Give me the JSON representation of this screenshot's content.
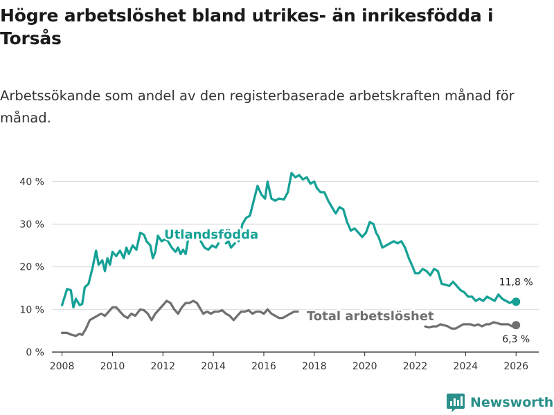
{
  "page": {
    "title": "Högre arbetslöshet bland utrikes- än inrikesfödda i Torsås",
    "subtitle": "Arbetssökande som andel av den registerbaserade arbetskraften månad för månad."
  },
  "brand": {
    "name": "Newsworthy",
    "icon": "newsworthy-logo-icon",
    "color": "#2a8f8a"
  },
  "chart_data": {
    "type": "line",
    "title": "Högre arbetslöshet bland utrikes- än inrikesfödda i Torsås",
    "subtitle": "Arbetssökande som andel av den registerbaserade arbetskraften månad för månad.",
    "xlabel": "",
    "ylabel": "",
    "xlim": [
      2007.6,
      2026.9
    ],
    "ylim": [
      0,
      43
    ],
    "x_ticks": [
      2008,
      2010,
      2012,
      2014,
      2016,
      2018,
      2020,
      2022,
      2024,
      2026
    ],
    "x_tick_labels": [
      "2008",
      "2010",
      "2012",
      "2014",
      "2016",
      "2018",
      "2020",
      "2022",
      "2024",
      "2026"
    ],
    "y_ticks": [
      0,
      10,
      20,
      30,
      40
    ],
    "y_tick_labels": [
      "0 %",
      "10 %",
      "20 %",
      "30 %",
      "40 %"
    ],
    "grid": true,
    "series": [
      {
        "name": "Utlandsfödda",
        "color": "#15a196",
        "end_label": "11,8 %",
        "points": [
          [
            2008.0,
            11.0
          ],
          [
            2008.2,
            14.8
          ],
          [
            2008.35,
            14.5
          ],
          [
            2008.45,
            10.5
          ],
          [
            2008.55,
            12.5
          ],
          [
            2008.7,
            11.0
          ],
          [
            2008.8,
            11.3
          ],
          [
            2008.9,
            15.2
          ],
          [
            2009.05,
            16.0
          ],
          [
            2009.2,
            19.5
          ],
          [
            2009.35,
            23.8
          ],
          [
            2009.45,
            20.5
          ],
          [
            2009.6,
            21.5
          ],
          [
            2009.7,
            19.0
          ],
          [
            2009.8,
            22.0
          ],
          [
            2009.9,
            20.5
          ],
          [
            2010.0,
            23.5
          ],
          [
            2010.15,
            22.5
          ],
          [
            2010.3,
            23.8
          ],
          [
            2010.45,
            22.0
          ],
          [
            2010.55,
            24.5
          ],
          [
            2010.65,
            23.0
          ],
          [
            2010.8,
            25.0
          ],
          [
            2010.95,
            24.0
          ],
          [
            2011.1,
            28.0
          ],
          [
            2011.25,
            27.5
          ],
          [
            2011.35,
            26.0
          ],
          [
            2011.5,
            25.0
          ],
          [
            2011.6,
            22.0
          ],
          [
            2011.7,
            23.5
          ],
          [
            2011.8,
            27.3
          ],
          [
            2011.95,
            26.0
          ],
          [
            2012.1,
            26.5
          ],
          [
            2012.2,
            26.0
          ],
          [
            2012.35,
            24.5
          ],
          [
            2012.5,
            23.5
          ],
          [
            2012.6,
            24.5
          ],
          [
            2012.7,
            23.0
          ],
          [
            2012.8,
            24.0
          ],
          [
            2012.9,
            23.0
          ],
          [
            2013.0,
            26.5
          ]
        ],
        "segments": [
          [
            [
              2013.5,
              26.0
            ],
            [
              2013.65,
              24.5
            ],
            [
              2013.8,
              24.0
            ],
            [
              2013.95,
              25.0
            ],
            [
              2014.1,
              24.5
            ],
            [
              2014.2,
              25.5
            ]
          ],
          [
            [
              2014.5,
              25.5
            ],
            [
              2014.6,
              26.0
            ],
            [
              2014.7,
              24.5
            ],
            [
              2014.85,
              25.5
            ]
          ],
          [
            [
              2015.0,
              26.0
            ],
            [
              2015.15,
              30.0
            ],
            [
              2015.3,
              31.5
            ],
            [
              2015.45,
              32.0
            ],
            [
              2015.6,
              35.5
            ],
            [
              2015.75,
              39.0
            ],
            [
              2015.9,
              37.0
            ],
            [
              2016.05,
              36.0
            ],
            [
              2016.15,
              40.0
            ],
            [
              2016.3,
              36.0
            ],
            [
              2016.45,
              35.5
            ],
            [
              2016.6,
              36.0
            ],
            [
              2016.8,
              35.8
            ],
            [
              2016.95,
              37.5
            ],
            [
              2017.1,
              42.0
            ],
            [
              2017.25,
              41.0
            ],
            [
              2017.4,
              41.5
            ],
            [
              2017.55,
              40.5
            ],
            [
              2017.7,
              41.0
            ],
            [
              2017.85,
              39.5
            ],
            [
              2018.0,
              40.0
            ],
            [
              2018.1,
              38.5
            ],
            [
              2018.25,
              37.5
            ],
            [
              2018.4,
              37.5
            ],
            [
              2018.55,
              35.5
            ],
            [
              2018.7,
              34.0
            ],
            [
              2018.85,
              32.5
            ],
            [
              2019.0,
              34.0
            ],
            [
              2019.15,
              33.5
            ],
            [
              2019.3,
              30.5
            ],
            [
              2019.45,
              28.5
            ],
            [
              2019.6,
              29.0
            ],
            [
              2019.75,
              28.0
            ],
            [
              2019.9,
              27.0
            ],
            [
              2020.05,
              28.0
            ],
            [
              2020.2,
              30.5
            ],
            [
              2020.35,
              30.0
            ],
            [
              2020.45,
              28.0
            ],
            [
              2020.55,
              27.0
            ],
            [
              2020.7,
              24.5
            ],
            [
              2020.85,
              25.0
            ],
            [
              2021.0,
              25.5
            ],
            [
              2021.15,
              26.0
            ],
            [
              2021.3,
              25.5
            ],
            [
              2021.45,
              26.0
            ],
            [
              2021.6,
              24.5
            ],
            [
              2021.75,
              22.0
            ],
            [
              2021.9,
              20.0
            ],
            [
              2022.0,
              18.5
            ],
            [
              2022.15,
              18.5
            ],
            [
              2022.3,
              19.5
            ],
            [
              2022.45,
              19.0
            ],
            [
              2022.6,
              18.0
            ],
            [
              2022.75,
              19.5
            ],
            [
              2022.9,
              19.0
            ],
            [
              2023.05,
              16.0
            ],
            [
              2023.2,
              15.8
            ],
            [
              2023.35,
              15.5
            ],
            [
              2023.5,
              16.5
            ],
            [
              2023.65,
              15.5
            ],
            [
              2023.8,
              14.5
            ],
            [
              2023.95,
              14.0
            ],
            [
              2024.1,
              13.0
            ],
            [
              2024.25,
              13.0
            ],
            [
              2024.4,
              12.0
            ],
            [
              2024.55,
              12.5
            ],
            [
              2024.7,
              12.0
            ],
            [
              2024.85,
              13.0
            ],
            [
              2025.0,
              12.5
            ],
            [
              2025.15,
              12.0
            ],
            [
              2025.3,
              13.5
            ],
            [
              2025.45,
              12.5
            ],
            [
              2025.6,
              12.0
            ],
            [
              2025.75,
              11.5
            ],
            [
              2025.9,
              12.0
            ],
            [
              2026.0,
              11.8
            ]
          ]
        ]
      },
      {
        "name": "Total arbetslöshet",
        "color": "#707070",
        "end_label": "6,3 %",
        "points": [
          [
            2008.0,
            4.5
          ],
          [
            2008.2,
            4.5
          ],
          [
            2008.4,
            4.0
          ],
          [
            2008.55,
            3.8
          ],
          [
            2008.7,
            4.3
          ],
          [
            2008.8,
            4.0
          ],
          [
            2008.95,
            5.5
          ],
          [
            2009.1,
            7.5
          ],
          [
            2009.25,
            8.0
          ],
          [
            2009.4,
            8.5
          ],
          [
            2009.55,
            9.0
          ],
          [
            2009.7,
            8.5
          ],
          [
            2009.85,
            9.5
          ],
          [
            2010.0,
            10.5
          ],
          [
            2010.15,
            10.5
          ],
          [
            2010.3,
            9.5
          ],
          [
            2010.45,
            8.5
          ],
          [
            2010.6,
            8.0
          ],
          [
            2010.75,
            9.0
          ],
          [
            2010.9,
            8.5
          ],
          [
            2011.1,
            10.0
          ],
          [
            2011.25,
            9.8
          ],
          [
            2011.4,
            9.0
          ],
          [
            2011.55,
            7.5
          ],
          [
            2011.7,
            9.0
          ],
          [
            2011.85,
            10.0
          ],
          [
            2012.0,
            11.0
          ],
          [
            2012.15,
            12.0
          ],
          [
            2012.3,
            11.5
          ],
          [
            2012.45,
            10.0
          ],
          [
            2012.6,
            9.0
          ],
          [
            2012.75,
            10.5
          ],
          [
            2012.9,
            11.5
          ],
          [
            2013.05,
            11.5
          ],
          [
            2013.2,
            12.0
          ],
          [
            2013.35,
            11.5
          ],
          [
            2013.5,
            10.0
          ],
          [
            2013.6,
            9.0
          ],
          [
            2013.75,
            9.5
          ],
          [
            2013.9,
            9.0
          ],
          [
            2014.05,
            9.5
          ],
          [
            2014.2,
            9.5
          ],
          [
            2014.35,
            9.8
          ],
          [
            2014.5,
            9.0
          ],
          [
            2014.65,
            8.5
          ],
          [
            2014.8,
            7.5
          ],
          [
            2014.95,
            8.5
          ],
          [
            2015.1,
            9.5
          ],
          [
            2015.25,
            9.5
          ],
          [
            2015.4,
            9.8
          ],
          [
            2015.55,
            9.0
          ],
          [
            2015.7,
            9.5
          ],
          [
            2015.85,
            9.5
          ],
          [
            2016.0,
            9.0
          ],
          [
            2016.15,
            10.0
          ],
          [
            2016.3,
            9.0
          ],
          [
            2016.45,
            8.5
          ],
          [
            2016.6,
            8.0
          ],
          [
            2016.75,
            8.0
          ],
          [
            2016.9,
            8.5
          ],
          [
            2017.05,
            9.0
          ],
          [
            2017.2,
            9.5
          ],
          [
            2017.35,
            9.5
          ]
        ],
        "segments": [
          [
            [
              2022.4,
              6.0
            ],
            [
              2022.55,
              5.8
            ],
            [
              2022.7,
              6.0
            ],
            [
              2022.85,
              6.0
            ],
            [
              2023.0,
              6.5
            ],
            [
              2023.15,
              6.3
            ],
            [
              2023.3,
              6.0
            ],
            [
              2023.45,
              5.5
            ],
            [
              2023.6,
              5.5
            ],
            [
              2023.75,
              6.0
            ],
            [
              2023.9,
              6.5
            ],
            [
              2024.05,
              6.5
            ],
            [
              2024.2,
              6.5
            ],
            [
              2024.35,
              6.2
            ],
            [
              2024.5,
              6.5
            ],
            [
              2024.65,
              6.0
            ],
            [
              2024.8,
              6.5
            ],
            [
              2024.95,
              6.5
            ],
            [
              2025.1,
              7.0
            ],
            [
              2025.25,
              6.8
            ],
            [
              2025.4,
              6.5
            ],
            [
              2025.55,
              6.5
            ],
            [
              2025.7,
              6.5
            ],
            [
              2025.85,
              6.0
            ],
            [
              2026.0,
              6.3
            ]
          ]
        ]
      }
    ],
    "annotations": [
      {
        "text": "Utlandsfödda",
        "series": "Utlandsfödda",
        "x": 2012.05,
        "y": 26.6
      },
      {
        "text": "Total arbetslöshet",
        "series": "Total arbetslöshet",
        "x": 2017.7,
        "y": 7.5
      }
    ]
  }
}
